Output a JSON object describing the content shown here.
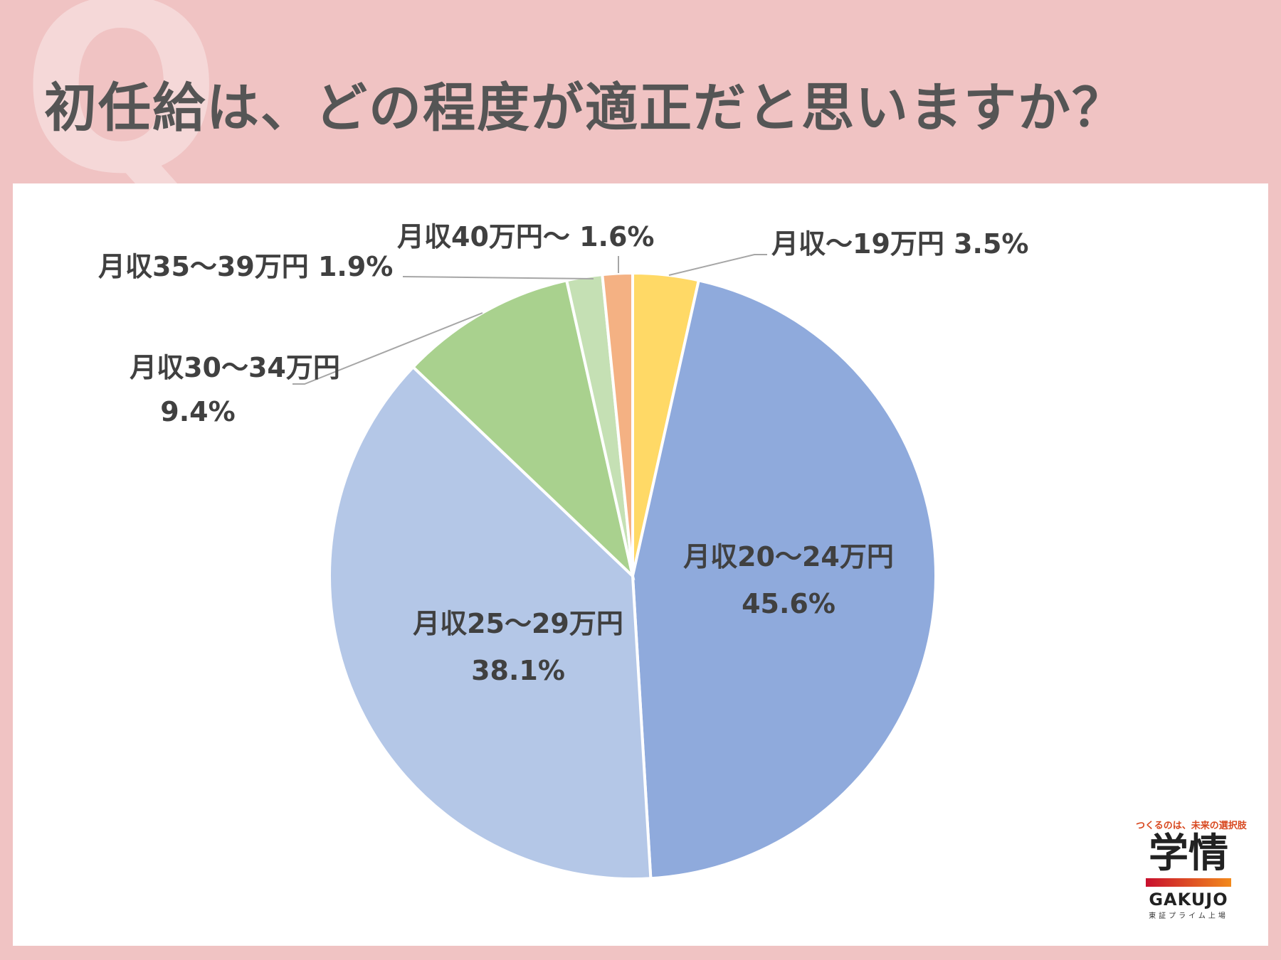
{
  "header": {
    "q_mark": "Q",
    "title": "初任給は、どの程度が適正だと思いますか？"
  },
  "logo": {
    "tagline": "つくるのは、未来の選択肢",
    "mark": "学情",
    "english": "GAKUJO",
    "sub": "東証プライム上場"
  },
  "chart_data": {
    "type": "pie",
    "title": "",
    "slices": [
      {
        "label": "月収～19万円",
        "value": 3.5,
        "value_label": "3.5%",
        "color": "#ffd966"
      },
      {
        "label": "月収20～24万円",
        "value": 45.6,
        "value_label": "45.6%",
        "color": "#8faadc"
      },
      {
        "label": "月収25～29万円",
        "value": 38.1,
        "value_label": "38.1%",
        "color": "#b4c7e7"
      },
      {
        "label": "月収30～34万円",
        "value": 9.4,
        "value_label": "9.4%",
        "color": "#a9d18e"
      },
      {
        "label": "月収35～39万円",
        "value": 1.9,
        "value_label": "1.9%",
        "color": "#c5e0b4"
      },
      {
        "label": "月収40万円～",
        "value": 1.6,
        "value_label": "1.6%",
        "color": "#f4b183"
      }
    ],
    "start_angle": "12 o'clock",
    "direction": "clockwise",
    "legend": "none"
  }
}
